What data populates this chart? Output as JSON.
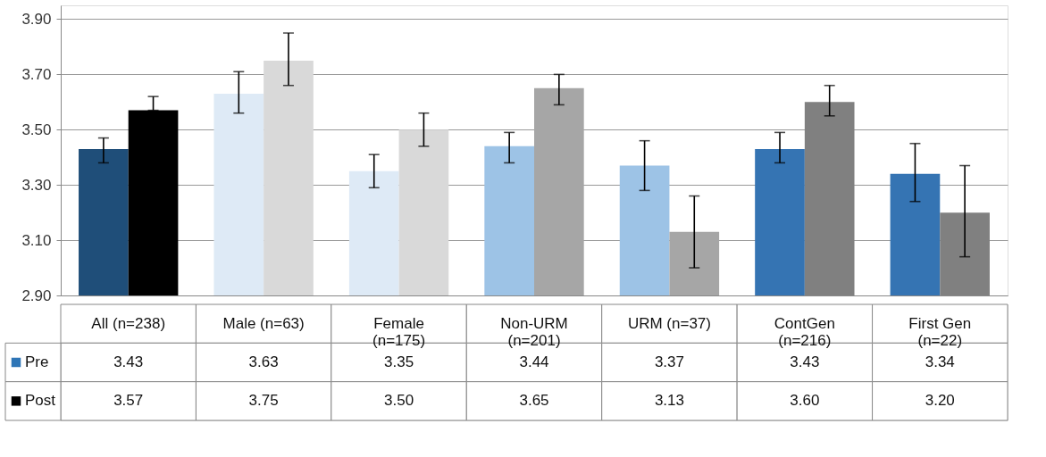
{
  "chart_data": {
    "type": "bar",
    "categories": [
      "All (n=238)",
      "Male (n=63)",
      "Female (n=175)",
      "Non-URM (n=201)",
      "URM (n=37)",
      "ContGen (n=216)",
      "First Gen (n=22)"
    ],
    "series": [
      {
        "name": "Pre",
        "color": "#2e75b6",
        "colors": [
          "#1f4e79",
          "#deeaf6",
          "#deeaf6",
          "#9dc3e6",
          "#9dc3e6",
          "#3574b3",
          "#3574b3"
        ],
        "values": [
          3.43,
          3.63,
          3.35,
          3.44,
          3.37,
          3.43,
          3.34
        ],
        "value_labels": [
          "3.43",
          "3.63",
          "3.35",
          "3.44",
          "3.37",
          "3.43",
          "3.34"
        ],
        "errors": [
          [
            3.38,
            3.47
          ],
          [
            3.56,
            3.71
          ],
          [
            3.29,
            3.41
          ],
          [
            3.38,
            3.49
          ],
          [
            3.28,
            3.46
          ],
          [
            3.38,
            3.49
          ],
          [
            3.24,
            3.45
          ]
        ]
      },
      {
        "name": "Post",
        "color": "#000000",
        "colors": [
          "#000000",
          "#d9d9d9",
          "#d9d9d9",
          "#a6a6a6",
          "#a6a6a6",
          "#808080",
          "#808080"
        ],
        "values": [
          3.57,
          3.75,
          3.5,
          3.65,
          3.13,
          3.6,
          3.2
        ],
        "value_labels": [
          "3.57",
          "3.75",
          "3.50",
          "3.65",
          "3.13",
          "3.60",
          "3.20"
        ],
        "errors": [
          [
            3.57,
            3.62
          ],
          [
            3.66,
            3.85
          ],
          [
            3.44,
            3.56
          ],
          [
            3.59,
            3.7
          ],
          [
            3.0,
            3.26
          ],
          [
            3.55,
            3.66
          ],
          [
            3.04,
            3.37
          ]
        ]
      }
    ],
    "ylim": [
      2.9,
      3.95
    ],
    "yticks": [
      {
        "value": 2.9,
        "label": "2.90"
      },
      {
        "value": 3.1,
        "label": "3.10"
      },
      {
        "value": 3.3,
        "label": "3.30"
      },
      {
        "value": 3.5,
        "label": "3.50"
      },
      {
        "value": 3.7,
        "label": "3.70"
      },
      {
        "value": 3.9,
        "label": "3.90"
      }
    ],
    "grid": "y",
    "legend": "bottom"
  }
}
